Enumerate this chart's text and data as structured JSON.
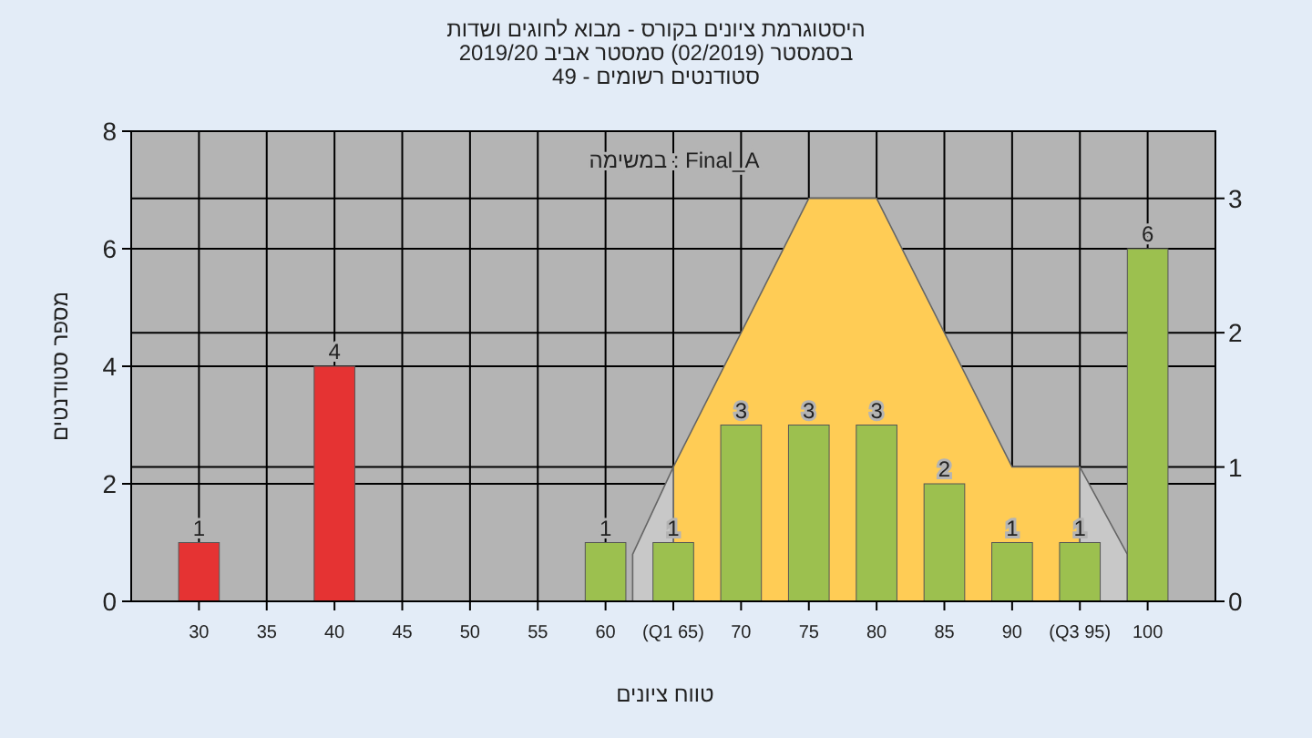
{
  "chart_data": {
    "type": "bar",
    "title": "היסטוגרמת ציונים בקורס - מבוא לחוגים ושדות",
    "subtitle": "בסמסטר (02/2019) סמסטר אביב 2019/20\nסטודנטים רשומים - 49",
    "xlabel": "טווח ציונים",
    "ylabel": "מספר סטודנטים",
    "annotations": [
      "במשימה : Final_A"
    ],
    "xlim": [
      25,
      105
    ],
    "xticks": [
      30,
      35,
      40,
      45,
      50,
      55,
      60,
      {
        "value": 65,
        "label": "(Q1 65)"
      },
      70,
      75,
      80,
      85,
      90,
      {
        "value": 95,
        "label": "(Q3 95)"
      },
      100
    ],
    "ylim": [
      0,
      8
    ],
    "yticks": [
      0,
      2,
      4,
      6,
      8
    ],
    "y2lim": [
      0,
      3.5
    ],
    "y2ticks": [
      0,
      1,
      2,
      3
    ],
    "grid": true,
    "series": [
      {
        "type": "area",
        "axis": "y2",
        "color": "#ffcc55",
        "x": [
          65,
          75,
          80,
          90,
          95
        ],
        "values": [
          1,
          3,
          3,
          1,
          1
        ]
      },
      {
        "type": "area",
        "axis": "y2",
        "color": "#c8c8c8",
        "x": [
          62,
          65
        ],
        "values": [
          0.35,
          1
        ]
      },
      {
        "type": "area",
        "axis": "y2",
        "color": "#c8c8c8",
        "x": [
          95,
          98.5
        ],
        "values": [
          1,
          0.35
        ]
      },
      {
        "x": [
          30,
          40,
          60,
          65,
          70,
          75,
          80,
          85,
          90,
          95,
          100
        ],
        "values": [
          1,
          4,
          1,
          1,
          3,
          3,
          3,
          2,
          1,
          1,
          6
        ],
        "value_labels": [
          "1",
          "4",
          "1",
          "1",
          "3",
          "3",
          "3",
          "2",
          "1",
          "1",
          "6"
        ],
        "colors": [
          "#e53333",
          "#e53333",
          "#9cc04f",
          "#9cc04f",
          "#9cc04f",
          "#9cc04f",
          "#9cc04f",
          "#9cc04f",
          "#9cc04f",
          "#9cc04f",
          "#9cc04f"
        ]
      }
    ]
  }
}
